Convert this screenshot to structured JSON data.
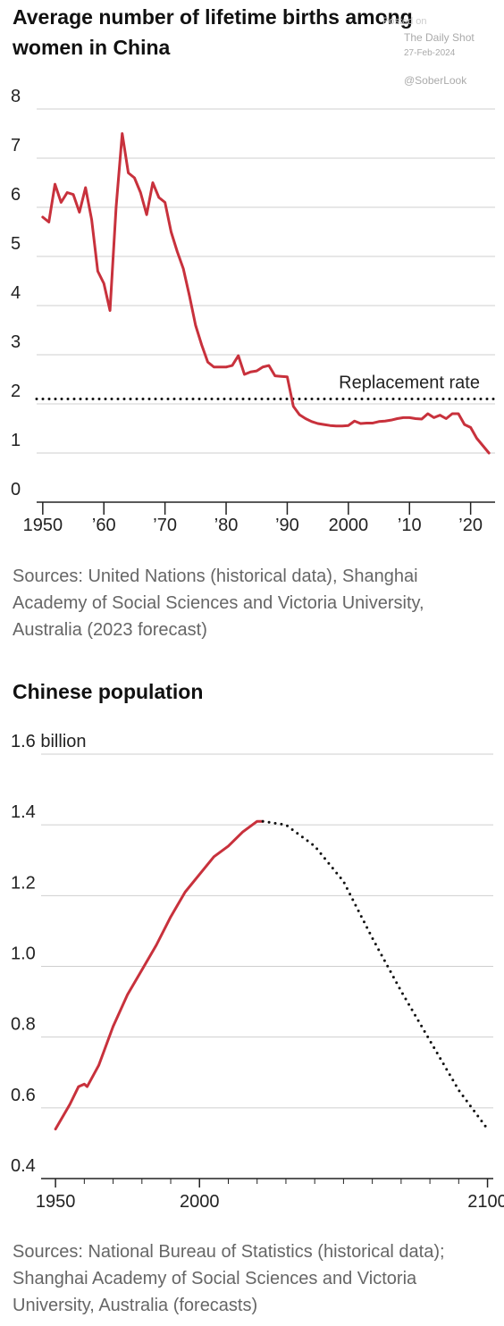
{
  "watermark": [
    "Posted on",
    "The Daily Shot",
    "27-Feb-2024",
    "@SoberLook"
  ],
  "chart_data": [
    {
      "type": "line",
      "title": "Average number of lifetime births among women in China",
      "source": "Sources: United Nations (historical data), Shanghai Academy of Social Sciences and Victoria University, Australia (2023 forecast)",
      "x": [
        1950,
        1951,
        1952,
        1953,
        1954,
        1955,
        1956,
        1957,
        1958,
        1959,
        1960,
        1961,
        1962,
        1963,
        1964,
        1965,
        1966,
        1967,
        1968,
        1969,
        1970,
        1971,
        1972,
        1973,
        1974,
        1975,
        1976,
        1977,
        1978,
        1979,
        1980,
        1981,
        1982,
        1983,
        1984,
        1985,
        1986,
        1987,
        1988,
        1989,
        1990,
        1991,
        1992,
        1993,
        1994,
        1995,
        1996,
        1997,
        1998,
        1999,
        2000,
        2001,
        2002,
        2003,
        2004,
        2005,
        2006,
        2007,
        2008,
        2009,
        2010,
        2011,
        2012,
        2013,
        2014,
        2015,
        2016,
        2017,
        2018,
        2019,
        2020,
        2021,
        2022,
        2023
      ],
      "series": [
        {
          "color": "#c8313c",
          "style": "solid",
          "values": [
            5.8,
            5.7,
            6.47,
            6.1,
            6.3,
            6.26,
            5.9,
            6.4,
            5.75,
            4.7,
            4.45,
            3.9,
            6.0,
            7.5,
            6.7,
            6.6,
            6.3,
            5.85,
            6.5,
            6.2,
            6.1,
            5.5,
            5.1,
            4.75,
            4.2,
            3.6,
            3.2,
            2.85,
            2.75,
            2.75,
            2.75,
            2.78,
            2.98,
            2.6,
            2.65,
            2.67,
            2.75,
            2.78,
            2.57,
            2.56,
            2.55,
            1.95,
            1.78,
            1.7,
            1.64,
            1.6,
            1.58,
            1.56,
            1.55,
            1.55,
            1.56,
            1.65,
            1.6,
            1.61,
            1.61,
            1.64,
            1.65,
            1.67,
            1.7,
            1.72,
            1.72,
            1.7,
            1.69,
            1.8,
            1.72,
            1.77,
            1.7,
            1.8,
            1.8,
            1.58,
            1.52,
            1.3,
            1.15,
            1.0
          ]
        }
      ],
      "reference_line": {
        "value": 2.1,
        "label": "Replacement rate"
      },
      "xlim": [
        1949,
        2024
      ],
      "xticks": [
        1950,
        {
          "value": 1960,
          "label": "’60"
        },
        {
          "value": 1970,
          "label": "’70"
        },
        {
          "value": 1980,
          "label": "’80"
        },
        {
          "value": 1990,
          "label": "’90"
        },
        2000,
        {
          "value": 2010,
          "label": "’10"
        },
        {
          "value": 2020,
          "label": "’20"
        }
      ],
      "ylim": [
        0,
        8
      ],
      "yticks": [
        0,
        1,
        2,
        3,
        4,
        5,
        6,
        7,
        8
      ],
      "grid": true
    },
    {
      "type": "line",
      "title": "Chinese population",
      "source": "Sources: National Bureau of Statistics (historical data); Shanghai Academy of Social Sciences and Victoria University, Australia (forecasts)",
      "series": [
        {
          "color": "#c8313c",
          "style": "solid",
          "x": [
            1950,
            1955,
            1958,
            1960,
            1961,
            1965,
            1970,
            1975,
            1980,
            1985,
            1990,
            1995,
            2000,
            2005,
            2010,
            2015,
            2020,
            2022
          ],
          "values": [
            0.54,
            0.61,
            0.66,
            0.667,
            0.66,
            0.72,
            0.83,
            0.92,
            0.99,
            1.06,
            1.14,
            1.21,
            1.26,
            1.31,
            1.34,
            1.38,
            1.41,
            1.41
          ]
        },
        {
          "color": "#111111",
          "style": "dotted",
          "x": [
            2022,
            2030,
            2040,
            2050,
            2060,
            2070,
            2080,
            2090,
            2100
          ],
          "values": [
            1.41,
            1.4,
            1.34,
            1.24,
            1.08,
            0.93,
            0.79,
            0.65,
            0.54
          ]
        }
      ],
      "xlim": [
        1945,
        2102
      ],
      "xticks": [
        1950,
        2000,
        2100
      ],
      "xminorticks": [
        1960,
        1970,
        1980,
        1990,
        2010,
        2020,
        2030,
        2040,
        2050,
        2060,
        2070,
        2080,
        2090
      ],
      "ylim": [
        0.4,
        1.6
      ],
      "yticks": [
        0.4,
        0.6,
        0.8,
        {
          "value": 1.0,
          "label": "1.0"
        },
        1.2,
        1.4,
        {
          "value": 1.6,
          "label": "1.6 billion"
        }
      ],
      "grid": true
    }
  ]
}
